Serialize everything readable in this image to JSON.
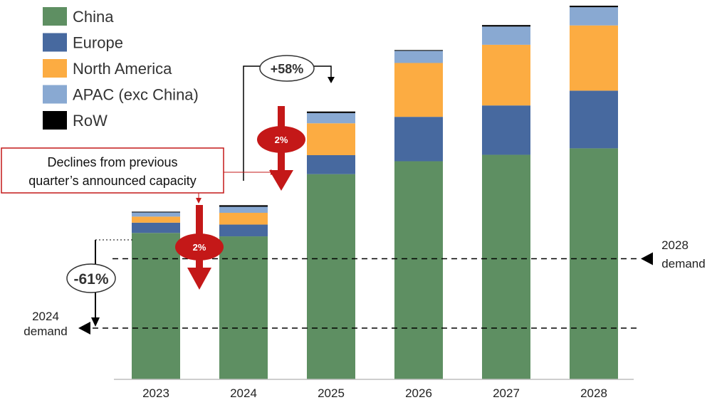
{
  "chart_data": {
    "type": "bar",
    "stacked": true,
    "categories": [
      "2023",
      "2024",
      "2025",
      "2026",
      "2027",
      "2028"
    ],
    "ylim": [
      0,
      100
    ],
    "grid": false,
    "legend_position": "top-left",
    "series": [
      {
        "name": "China",
        "color": "#5e8f62",
        "values": [
          38.6,
          37.7,
          54.1,
          57.5,
          59.2,
          60.9
        ]
      },
      {
        "name": "Europe",
        "color": "#47699f",
        "values": [
          2.7,
          3.1,
          5.0,
          11.7,
          13.0,
          15.2
        ]
      },
      {
        "name": "North America",
        "color": "#fcac42",
        "values": [
          1.6,
          3.1,
          8.4,
          14.2,
          16.0,
          17.2
        ]
      },
      {
        "name": "APAC (exc China)",
        "color": "#89a9d2",
        "values": [
          1.1,
          1.6,
          2.7,
          3.2,
          4.8,
          4.8
        ]
      },
      {
        "name": "RoW",
        "color": "#000000",
        "values": [
          0.2,
          0.4,
          0.4,
          0.2,
          0.4,
          0.4
        ]
      }
    ],
    "reference_lines": [
      {
        "label": "2024 demand",
        "value": 13.5
      },
      {
        "label": "2028 demand",
        "value": 31.8
      }
    ],
    "annotations": {
      "decline_callout": "Declines from previous quarter’s announced capacity",
      "decline_badge_2023": "2%",
      "decline_badge_2025": "2%",
      "growth_label": "+58%",
      "gap_label": "-61%"
    }
  }
}
